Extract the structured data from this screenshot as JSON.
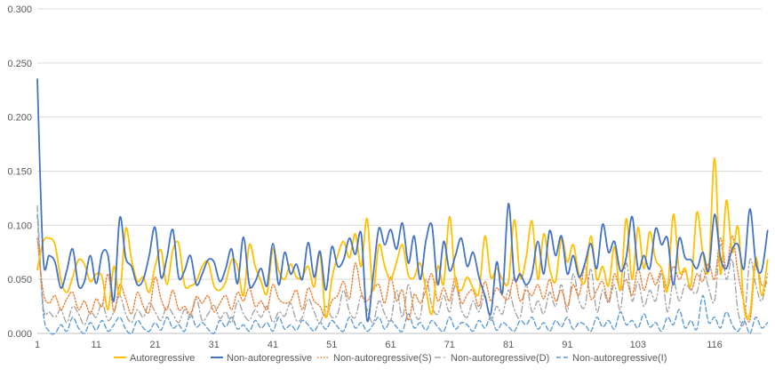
{
  "chart_data": {
    "type": "line",
    "title": "",
    "xlabel": "",
    "ylabel": "",
    "ylim": [
      0,
      0.3
    ],
    "y_ticks": [
      "0.000",
      "0.050",
      "0.100",
      "0.150",
      "0.200",
      "0.250",
      "0.300"
    ],
    "x_range": [
      1,
      124
    ],
    "x_tick_labels": [
      "1",
      "11",
      "21",
      "31",
      "41",
      "51",
      "61",
      "71",
      "81",
      "91",
      "103",
      "116"
    ],
    "grid": "horizontal",
    "legend_position": "bottom",
    "series": [
      {
        "name": "Autoregressive",
        "color": "#FFC000",
        "dash": "solid",
        "values": [
          0.059,
          0.085,
          0.088,
          0.082,
          0.05,
          0.038,
          0.052,
          0.068,
          0.064,
          0.048,
          0.055,
          0.052,
          0.022,
          0.062,
          0.036,
          0.097,
          0.068,
          0.048,
          0.052,
          0.038,
          0.062,
          0.077,
          0.045,
          0.077,
          0.083,
          0.045,
          0.044,
          0.048,
          0.062,
          0.066,
          0.044,
          0.04,
          0.048,
          0.068,
          0.062,
          0.035,
          0.082,
          0.062,
          0.048,
          0.037,
          0.078,
          0.058,
          0.05,
          0.064,
          0.052,
          0.052,
          0.062,
          0.043,
          0.074,
          0.015,
          0.05,
          0.072,
          0.085,
          0.07,
          0.092,
          0.062,
          0.106,
          0.04,
          0.082,
          0.062,
          0.05,
          0.066,
          0.082,
          0.054,
          0.052,
          0.065,
          0.04,
          0.018,
          0.062,
          0.046,
          0.108,
          0.048,
          0.04,
          0.052,
          0.042,
          0.038,
          0.09,
          0.052,
          0.06,
          0.05,
          0.048,
          0.105,
          0.052,
          0.07,
          0.104,
          0.05,
          0.092,
          0.06,
          0.048,
          0.088,
          0.066,
          0.082,
          0.054,
          0.048,
          0.09,
          0.05,
          0.062,
          0.044,
          0.08,
          0.04,
          0.106,
          0.05,
          0.098,
          0.06,
          0.094,
          0.068,
          0.06,
          0.04,
          0.11,
          0.058,
          0.06,
          0.045,
          0.112,
          0.075,
          0.06,
          0.162,
          0.055,
          0.123,
          0.075,
          0.098,
          0.025,
          0.018,
          0.07,
          0.035,
          0.068
        ]
      },
      {
        "name": "Non-autoregressive",
        "color": "#4472C4",
        "dash": "solid",
        "values": [
          0.235,
          0.07,
          0.072,
          0.066,
          0.042,
          0.058,
          0.078,
          0.044,
          0.048,
          0.072,
          0.046,
          0.074,
          0.072,
          0.03,
          0.107,
          0.07,
          0.062,
          0.045,
          0.05,
          0.072,
          0.098,
          0.052,
          0.07,
          0.096,
          0.052,
          0.058,
          0.072,
          0.045,
          0.055,
          0.068,
          0.066,
          0.048,
          0.06,
          0.078,
          0.046,
          0.089,
          0.045,
          0.048,
          0.06,
          0.044,
          0.083,
          0.045,
          0.075,
          0.055,
          0.064,
          0.05,
          0.084,
          0.052,
          0.076,
          0.04,
          0.08,
          0.062,
          0.068,
          0.088,
          0.073,
          0.092,
          0.012,
          0.052,
          0.097,
          0.082,
          0.096,
          0.078,
          0.102,
          0.065,
          0.09,
          0.05,
          0.086,
          0.1,
          0.045,
          0.085,
          0.058,
          0.072,
          0.088,
          0.062,
          0.075,
          0.052,
          0.035,
          0.018,
          0.066,
          0.038,
          0.12,
          0.052,
          0.055,
          0.045,
          0.055,
          0.085,
          0.055,
          0.095,
          0.072,
          0.09,
          0.055,
          0.072,
          0.052,
          0.065,
          0.083,
          0.06,
          0.101,
          0.075,
          0.085,
          0.058,
          0.07,
          0.108,
          0.06,
          0.072,
          0.06,
          0.097,
          0.082,
          0.088,
          0.045,
          0.088,
          0.07,
          0.068,
          0.06,
          0.075,
          0.058,
          0.11,
          0.07,
          0.06,
          0.078,
          0.082,
          0.06,
          0.115,
          0.066,
          0.058,
          0.095
        ]
      },
      {
        "name": "Non-autoregressive(S)",
        "color": "#ED7D31",
        "dash": "dotted",
        "values": [
          0.088,
          0.038,
          0.028,
          0.035,
          0.022,
          0.032,
          0.038,
          0.022,
          0.03,
          0.018,
          0.032,
          0.025,
          0.055,
          0.02,
          0.045,
          0.032,
          0.018,
          0.038,
          0.025,
          0.02,
          0.052,
          0.032,
          0.022,
          0.04,
          0.022,
          0.025,
          0.018,
          0.034,
          0.028,
          0.035,
          0.02,
          0.028,
          0.035,
          0.022,
          0.038,
          0.03,
          0.042,
          0.025,
          0.03,
          0.022,
          0.045,
          0.032,
          0.028,
          0.03,
          0.04,
          0.022,
          0.042,
          0.03,
          0.025,
          0.015,
          0.03,
          0.035,
          0.048,
          0.032,
          0.065,
          0.038,
          0.03,
          0.04,
          0.045,
          0.028,
          0.052,
          0.03,
          0.04,
          0.012,
          0.036,
          0.028,
          0.04,
          0.055,
          0.03,
          0.042,
          0.03,
          0.052,
          0.028,
          0.036,
          0.04,
          0.025,
          0.048,
          0.03,
          0.042,
          0.035,
          0.032,
          0.052,
          0.03,
          0.04,
          0.035,
          0.045,
          0.032,
          0.05,
          0.03,
          0.04,
          0.025,
          0.045,
          0.035,
          0.062,
          0.032,
          0.04,
          0.048,
          0.03,
          0.055,
          0.04,
          0.05,
          0.035,
          0.06,
          0.04,
          0.056,
          0.045,
          0.058,
          0.042,
          0.062,
          0.05,
          0.058,
          0.04,
          0.055,
          0.048,
          0.065,
          0.05,
          0.088,
          0.06,
          0.09,
          0.055,
          0.028,
          0.012,
          0.065,
          0.045,
          0.048
        ]
      },
      {
        "name": "Non-autoregressive(D)",
        "color": "#A5A5A5",
        "dash": "dash-dot",
        "values": [
          0.118,
          0.025,
          0.02,
          0.015,
          0.022,
          0.01,
          0.025,
          0.018,
          0.008,
          0.02,
          0.015,
          0.028,
          0.012,
          0.02,
          0.035,
          0.018,
          0.01,
          0.022,
          0.015,
          0.028,
          0.02,
          0.012,
          0.025,
          0.018,
          0.01,
          0.022,
          0.015,
          0.032,
          0.012,
          0.018,
          0.026,
          0.014,
          0.02,
          0.01,
          0.03,
          0.018,
          0.012,
          0.022,
          0.015,
          0.025,
          0.01,
          0.02,
          0.016,
          0.028,
          0.012,
          0.015,
          0.032,
          0.02,
          0.01,
          0.025,
          0.015,
          0.018,
          0.04,
          0.02,
          0.015,
          0.035,
          0.022,
          0.01,
          0.03,
          0.018,
          0.012,
          0.04,
          0.015,
          0.045,
          0.02,
          0.015,
          0.05,
          0.025,
          0.018,
          0.035,
          0.02,
          0.045,
          0.022,
          0.015,
          0.03,
          0.02,
          0.035,
          0.012,
          0.025,
          0.018,
          0.04,
          0.022,
          0.015,
          0.045,
          0.02,
          0.03,
          0.018,
          0.038,
          0.025,
          0.045,
          0.02,
          0.055,
          0.03,
          0.025,
          0.06,
          0.02,
          0.04,
          0.028,
          0.045,
          0.022,
          0.065,
          0.03,
          0.048,
          0.025,
          0.04,
          0.03,
          0.055,
          0.02,
          0.048,
          0.03,
          0.045,
          0.04,
          0.038,
          0.06,
          0.042,
          0.03,
          0.082,
          0.05,
          0.068,
          0.02,
          0.01,
          0.068,
          0.045,
          0.03,
          0.055
        ]
      },
      {
        "name": "Non-autoregressive(I)",
        "color": "#5B9BD5",
        "dash": "dashed",
        "values": [
          0.11,
          0.02,
          0.002,
          0.0,
          0.008,
          0.002,
          0.015,
          0.005,
          0.0,
          0.01,
          0.003,
          0.012,
          0.002,
          0.008,
          0.015,
          0.004,
          0.0,
          0.012,
          0.005,
          0.002,
          0.01,
          0.003,
          0.015,
          0.005,
          0.008,
          0.002,
          0.018,
          0.006,
          0.01,
          0.004,
          0.0,
          0.012,
          0.006,
          0.015,
          0.004,
          0.008,
          0.002,
          0.012,
          0.005,
          0.01,
          0.002,
          0.015,
          0.004,
          0.008,
          0.003,
          0.012,
          0.008,
          0.002,
          0.01,
          0.004,
          0.012,
          0.006,
          0.002,
          0.015,
          0.005,
          0.01,
          0.002,
          0.008,
          0.015,
          0.004,
          0.012,
          0.006,
          0.002,
          0.018,
          0.005,
          0.01,
          0.003,
          0.012,
          0.006,
          0.002,
          0.015,
          0.004,
          0.01,
          0.008,
          0.002,
          0.012,
          0.005,
          0.015,
          0.003,
          0.01,
          0.006,
          0.002,
          0.012,
          0.008,
          0.015,
          0.004,
          0.01,
          0.002,
          0.012,
          0.006,
          0.015,
          0.004,
          0.01,
          0.008,
          0.002,
          0.015,
          0.006,
          0.012,
          0.004,
          0.02,
          0.008,
          0.012,
          0.005,
          0.018,
          0.006,
          0.01,
          0.002,
          0.015,
          0.008,
          0.022,
          0.005,
          0.012,
          0.004,
          0.035,
          0.01,
          0.015,
          0.005,
          0.02,
          0.008,
          0.002,
          0.012,
          0.0,
          0.015,
          0.005,
          0.01
        ]
      }
    ]
  }
}
